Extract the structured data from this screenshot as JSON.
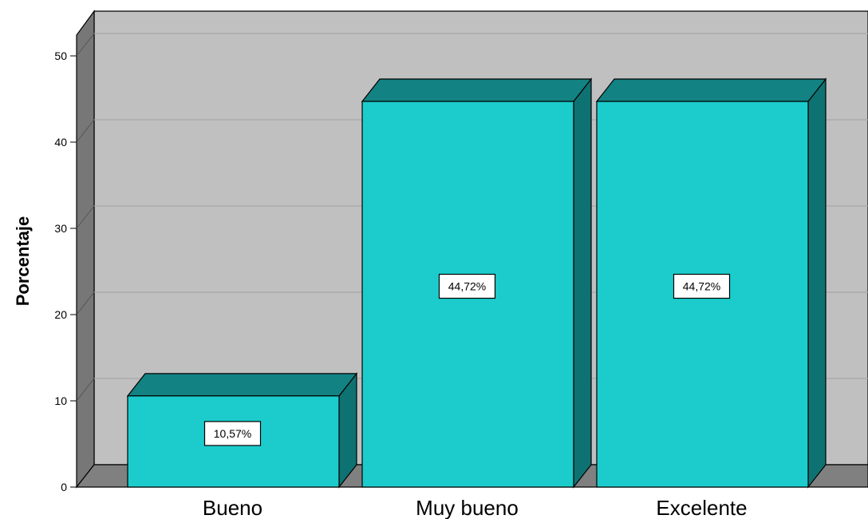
{
  "chart_data": {
    "type": "bar",
    "categories": [
      "Bueno",
      "Muy bueno",
      "Excelente"
    ],
    "values": [
      10.57,
      44.72,
      44.72
    ],
    "data_labels": [
      "10,57%",
      "44,72%",
      "44,72%"
    ],
    "ylabel": "Porcentaje",
    "xlabel": "",
    "ylim": [
      0,
      50
    ],
    "yticks": [
      0,
      10,
      20,
      30,
      40,
      50
    ],
    "grid": true,
    "style": "3d",
    "colors": {
      "bar_front": "#1ccccc",
      "bar_top": "#138282",
      "bar_side": "#0f7272",
      "wall_back": "#c0c0c0",
      "wall_side": "#777777",
      "floor": "#808080",
      "gridline": "#a8a8a8"
    }
  }
}
